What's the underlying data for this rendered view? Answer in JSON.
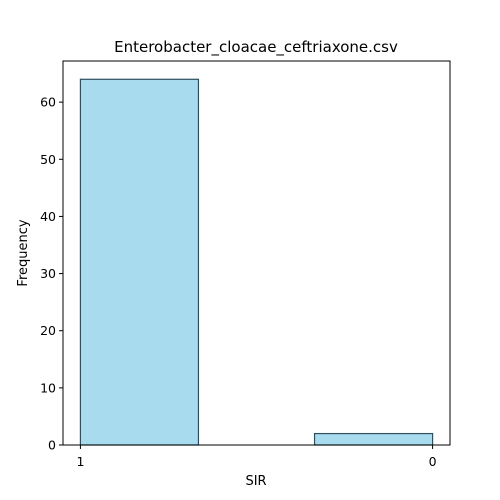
{
  "chart_data": {
    "type": "bar",
    "title": "Enterobacter_cloacae_ceftriaxone.csv",
    "xlabel": "SIR",
    "ylabel": "Frequency",
    "categories": [
      "1",
      "0"
    ],
    "values": [
      64,
      2
    ],
    "ylim": [
      0,
      67.2
    ],
    "yticks": [
      0,
      10,
      20,
      30,
      40,
      50,
      60
    ],
    "grid": false,
    "legend": "none",
    "bar_color": "#a9dbef",
    "bar_edge_color": "#2f4f5f"
  }
}
